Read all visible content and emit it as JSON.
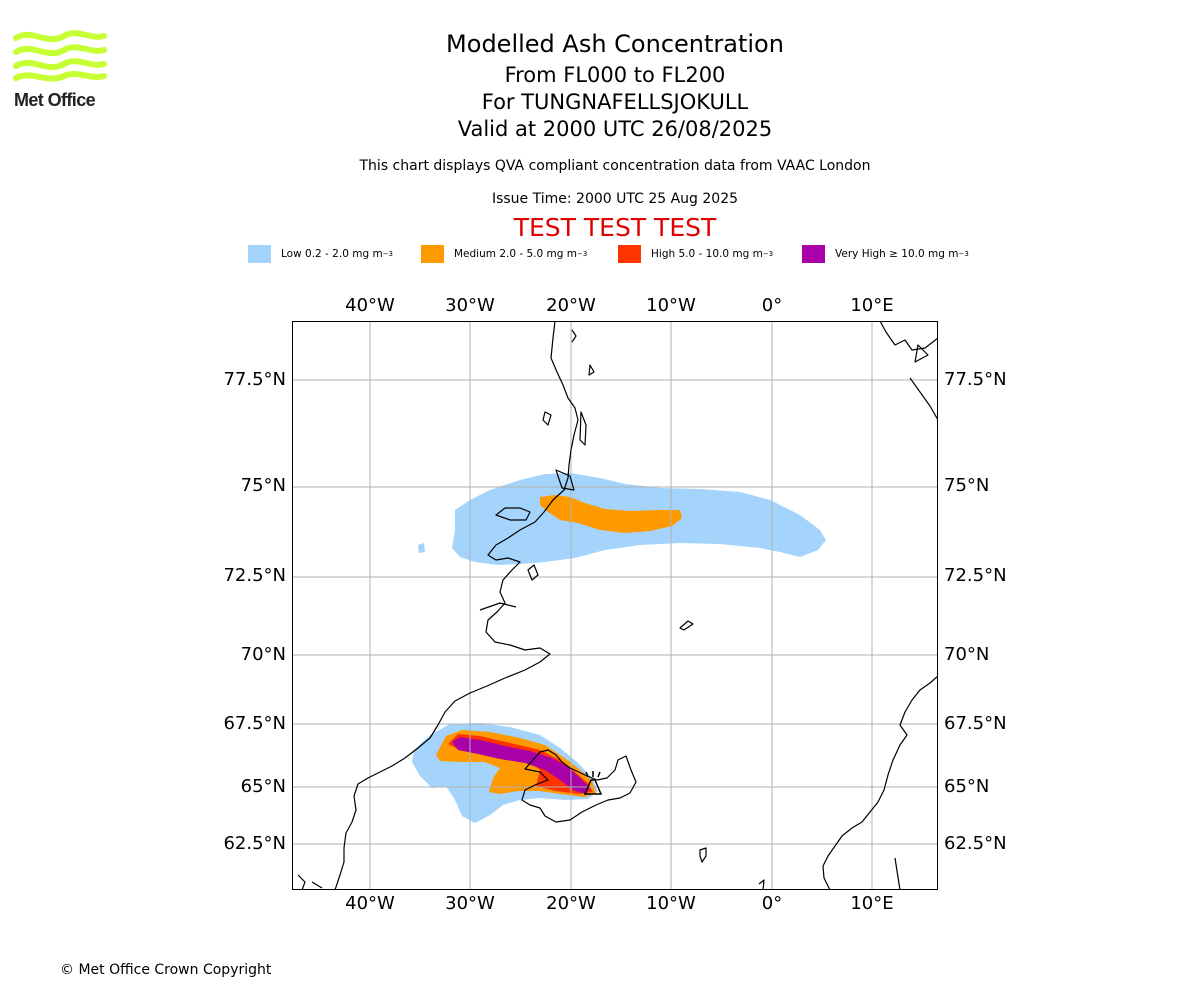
{
  "logo": {
    "text": "Met Office",
    "color": "#c6ff33"
  },
  "header": {
    "title": "Modelled Ash Concentration",
    "levels": "From FL000 to FL200",
    "volcano": "For TUNGNAFELLSJOKULL",
    "valid": "Valid at 2000 UTC 26/08/2025",
    "description": "This chart displays QVA compliant concentration data from VAAC London",
    "issue_time": "Issue Time: 2000 UTC 25 Aug 2025",
    "test_banner": "TEST TEST TEST"
  },
  "legend": [
    {
      "label": "Low 0.2 - 2.0 mg m",
      "sup": "−3",
      "color": "#a4d4fb"
    },
    {
      "label": "Medium 2.0 - 5.0 mg m",
      "sup": "−3",
      "color": "#ff9900"
    },
    {
      "label": "High 5.0 - 10.0 mg m",
      "sup": "−3",
      "color": "#ff3300"
    },
    {
      "label": "Very High  ≥  10.0 mg m",
      "sup": "−3",
      "color": "#aa00aa"
    }
  ],
  "map": {
    "lon_ticks": [
      "40°W",
      "30°W",
      "20°W",
      "10°W",
      "0°",
      "10°E"
    ],
    "lat_ticks": [
      "77.5°N",
      "75°N",
      "72.5°N",
      "70°N",
      "67.5°N",
      "65°N",
      "62.5°N"
    ],
    "grid": true,
    "volcano_icon": "volcano-marker-icon"
  },
  "footer": {
    "copyright": "© Met Office Crown Copyright"
  }
}
